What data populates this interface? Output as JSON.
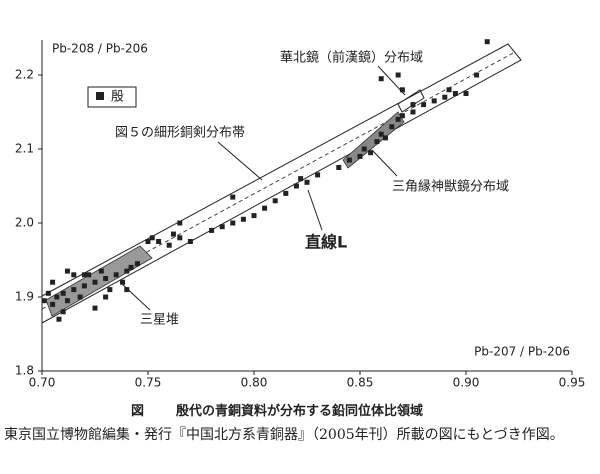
{
  "chart_data": {
    "type": "scatter",
    "ylabel": "Pb-208 / Pb-206",
    "xlabel": "Pb-207 / Pb-206",
    "annotations": [
      "華北鏡（前漢鏡）分布域",
      "図５の細形銅剣分布帯",
      "三角縁神獣鏡分布域",
      "直線L",
      "三星堆"
    ],
    "xlim": [
      0.7,
      0.95
    ],
    "ylim": [
      1.8,
      2.25
    ],
    "xticks": [
      {
        "value": 0.7,
        "label": "0.70"
      },
      {
        "value": 0.75,
        "label": "0.75"
      },
      {
        "value": 0.8,
        "label": "0.80"
      },
      {
        "value": 0.85,
        "label": "0.85"
      },
      {
        "value": 0.9,
        "label": "0.90"
      },
      {
        "value": 0.95,
        "label": "0.95"
      }
    ],
    "yticks": [
      1.8,
      1.9,
      {
        "value": 2,
        "label": "2.0"
      },
      2.1,
      2.2
    ],
    "x": [
      0.701,
      0.703,
      0.705,
      0.707,
      0.71,
      0.712,
      0.715,
      0.71,
      0.72,
      0.718,
      0.725,
      0.722,
      0.73,
      0.732,
      0.735,
      0.738,
      0.74,
      0.742,
      0.745,
      0.712,
      0.715,
      0.72,
      0.728,
      0.705,
      0.708,
      0.75,
      0.752,
      0.755,
      0.76,
      0.762,
      0.765,
      0.77,
      0.78,
      0.785,
      0.79,
      0.795,
      0.8,
      0.805,
      0.81,
      0.815,
      0.82,
      0.822,
      0.825,
      0.83,
      0.84,
      0.845,
      0.85,
      0.852,
      0.855,
      0.858,
      0.86,
      0.862,
      0.865,
      0.868,
      0.87,
      0.875,
      0.88,
      0.885,
      0.89,
      0.892,
      0.895,
      0.9,
      0.905,
      0.91,
      0.86,
      0.868,
      0.87,
      0.79,
      0.765,
      0.74,
      0.725,
      0.73,
      0.875
    ],
    "series": [
      {
        "name": "殷",
        "color": "#222222",
        "values": [
          1.895,
          1.905,
          1.89,
          1.9,
          1.905,
          1.895,
          1.91,
          1.88,
          1.915,
          1.9,
          1.92,
          1.93,
          1.925,
          1.91,
          1.93,
          1.92,
          1.935,
          1.94,
          1.945,
          1.935,
          1.93,
          1.93,
          1.935,
          1.92,
          1.87,
          1.975,
          1.98,
          1.975,
          1.97,
          1.985,
          1.98,
          1.975,
          1.99,
          1.995,
          2.0,
          2.005,
          2.01,
          2.02,
          2.03,
          2.04,
          2.05,
          2.06,
          2.055,
          2.065,
          2.075,
          2.085,
          2.09,
          2.1,
          2.095,
          2.11,
          2.12,
          2.115,
          2.13,
          2.14,
          2.145,
          2.15,
          2.16,
          2.165,
          2.17,
          2.18,
          2.175,
          2.175,
          2.2,
          2.245,
          2.195,
          2.2,
          2.18,
          2.035,
          2.0,
          1.91,
          1.885,
          1.9,
          2.16
        ]
      }
    ]
  },
  "caption": {
    "figure": "図",
    "title": "殷代の青銅資料が分布する鉛同位体比領域"
  },
  "note": "東京国立博物館編集・発行『中国北方系青銅器』（2005年刊）所載の図にもとづき作図。"
}
